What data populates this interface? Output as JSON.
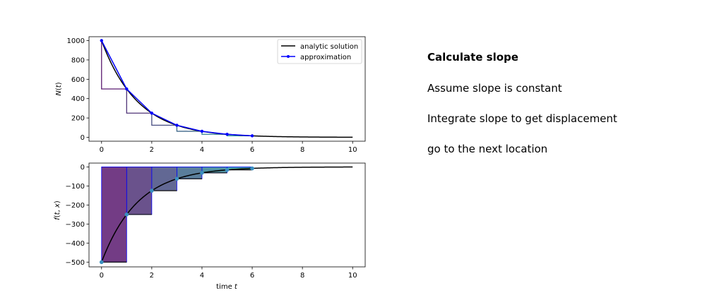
{
  "notes": {
    "title": "Calculate slope",
    "steps": [
      "Assume slope is constant",
      "Integrate slope to get displacement",
      "go to the next location"
    ]
  },
  "colors": {
    "analytic": "#000000",
    "approximation": "#0000ff",
    "steps_start": "#5a1a70",
    "steps_end": "#2a9a9a",
    "marker": "#3a8fc0"
  },
  "chart_data": [
    {
      "type": "line",
      "xlim": [
        -0.5,
        10.5
      ],
      "ylim": [
        -40,
        1040
      ],
      "xticks": [
        0,
        2,
        4,
        6,
        8,
        10
      ],
      "yticks": [
        0,
        200,
        400,
        600,
        800,
        1000
      ],
      "xlabel": "",
      "ylabel": "N(t)",
      "legend_placement": "top-right",
      "analytic": {
        "name": "analytic solution",
        "N0": 1000,
        "k": 0.5,
        "t_range": [
          0,
          10
        ]
      },
      "series": [
        {
          "name": "approximation",
          "x": [
            0,
            1,
            2,
            3,
            4,
            5,
            6
          ],
          "y": [
            1000,
            500,
            250,
            125,
            62.5,
            31.25,
            15.625
          ]
        }
      ]
    },
    {
      "type": "bar",
      "xlim": [
        -0.5,
        10.5
      ],
      "ylim": [
        -525,
        20
      ],
      "xticks": [
        0,
        2,
        4,
        6,
        8,
        10
      ],
      "yticks": [
        -500,
        -400,
        -300,
        -200,
        -100,
        0
      ],
      "xlabel": "time t",
      "ylabel": "f(t,x)",
      "analytic": {
        "f0": -500,
        "k": 0.5,
        "t_range": [
          0,
          10
        ]
      },
      "series": [
        {
          "name": "",
          "x": [
            0,
            1,
            2,
            3,
            4,
            5,
            6
          ],
          "y": [
            -500,
            -250,
            -125,
            -62.5,
            -31.25,
            -15.625,
            -7.8125
          ]
        }
      ]
    }
  ]
}
